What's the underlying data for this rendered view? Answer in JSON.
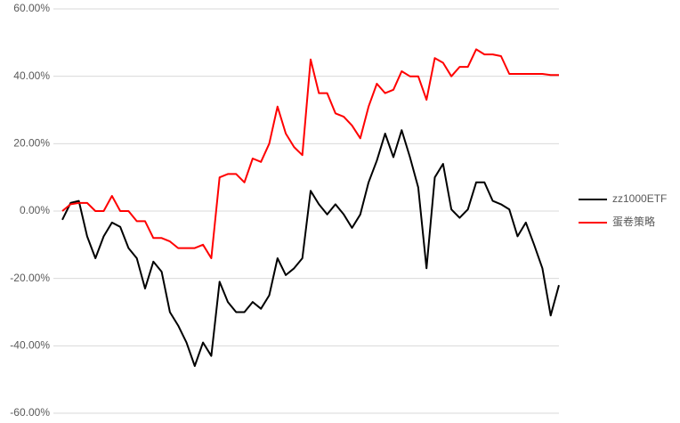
{
  "chart_data": {
    "type": "line",
    "categories": [
      null,
      null,
      null,
      null,
      null,
      null,
      null,
      null,
      null,
      null,
      null,
      null,
      null,
      null,
      null,
      null,
      null,
      null,
      null,
      null,
      null,
      null,
      null,
      null,
      null,
      null,
      null,
      null,
      null,
      null,
      null,
      null,
      null,
      null,
      null,
      null,
      null,
      null,
      null,
      null,
      null,
      null,
      null,
      null,
      null,
      null,
      null,
      null,
      null,
      null,
      null,
      null,
      null,
      null,
      null,
      null,
      null,
      null,
      null,
      null,
      null
    ],
    "series": [
      {
        "name": "zz1000ETF",
        "color": "#000000",
        "values": [
          -2.6,
          2.4,
          3,
          -7.5,
          -14,
          -7.5,
          -3.4,
          -4.7,
          -11,
          -14,
          -23,
          -15,
          -18,
          -30,
          -34,
          -39,
          -46,
          -39,
          -43,
          -21,
          -27,
          -30,
          -30,
          -27,
          -29,
          -25,
          -14,
          -19,
          -17,
          -14,
          6,
          2,
          -1,
          2,
          -1,
          -5,
          -1,
          8.5,
          15,
          23,
          16,
          24,
          16,
          7,
          -17,
          10,
          14,
          0.5,
          -2,
          0.5,
          8.5,
          8.5,
          3,
          2,
          0.5,
          -7.5,
          -3.4,
          -10,
          -17,
          -31,
          -22
        ]
      },
      {
        "name": "蛋卷策略",
        "color": "#ff0000",
        "values": [
          0,
          2,
          2.4,
          2.4,
          0,
          0,
          4.5,
          0,
          0,
          -3,
          -3,
          -8,
          -8,
          -9,
          -11,
          -11,
          -11,
          -10,
          -14,
          10,
          11,
          11,
          8.5,
          15.6,
          14.6,
          20,
          31,
          23,
          19,
          16.6,
          45,
          35,
          35,
          29,
          28,
          25.4,
          21.6,
          31,
          37.8,
          35,
          36,
          41.5,
          40,
          40,
          33,
          45.4,
          44,
          40,
          42.8,
          42.8,
          48,
          46.5,
          46.5,
          46,
          40.7,
          40.7,
          40.7,
          40.7,
          40.7,
          40.4,
          40.4
        ]
      }
    ],
    "ylim": [
      -60,
      60
    ],
    "yticks": [
      {
        "value": -60,
        "label": "-60.00%"
      },
      {
        "value": -40,
        "label": "-40.00%"
      },
      {
        "value": -20,
        "label": "-20.00%"
      },
      {
        "value": 0,
        "label": "0.00%"
      },
      {
        "value": 20,
        "label": "20.00%"
      },
      {
        "value": 40,
        "label": "40.00%"
      },
      {
        "value": 60,
        "label": "60.00%"
      }
    ],
    "grid": true,
    "legend": "right"
  }
}
